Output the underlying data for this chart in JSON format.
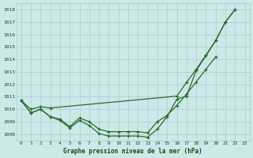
{
  "xlabel": "Graphe pression niveau de la mer (hPa)",
  "bg_color": "#cce8e8",
  "line_color": "#2d6a2d",
  "grid_color": "#aacece",
  "text_color": "#1a4a1a",
  "ylim_min": 1007.5,
  "ylim_max": 1018.5,
  "xlim_min": -0.5,
  "xlim_max": 23.5,
  "yticks": [
    1008,
    1009,
    1010,
    1011,
    1012,
    1013,
    1014,
    1015,
    1016,
    1017,
    1018
  ],
  "xticks": [
    0,
    1,
    2,
    3,
    4,
    5,
    6,
    7,
    8,
    9,
    10,
    11,
    12,
    13,
    14,
    15,
    16,
    17,
    18,
    19,
    20,
    21,
    22,
    23
  ],
  "line1_h": [
    0,
    1,
    2,
    3,
    4,
    5,
    6,
    7,
    8,
    9,
    10,
    11,
    12,
    13,
    14,
    15,
    16,
    17,
    18,
    19,
    20,
    21,
    22
  ],
  "line1_v": [
    1010.7,
    1009.7,
    1010.0,
    1009.4,
    1009.1,
    1008.5,
    1009.1,
    1008.7,
    1008.05,
    1007.85,
    1007.85,
    1007.85,
    1007.85,
    1007.75,
    1008.4,
    1009.4,
    1010.8,
    1011.05,
    1013.1,
    1014.3,
    1015.5,
    1017.0,
    1018.0
  ],
  "line2_h": [
    0,
    1,
    2,
    3,
    4,
    5,
    6,
    7,
    8,
    9,
    10,
    11,
    12,
    13,
    14,
    15,
    16,
    17,
    18,
    19,
    20
  ],
  "line2_v": [
    1010.7,
    1009.7,
    1010.0,
    1009.4,
    1009.2,
    1008.6,
    1009.3,
    1009.0,
    1008.4,
    1008.2,
    1008.2,
    1008.2,
    1008.2,
    1008.1,
    1009.0,
    1009.5,
    1010.3,
    1011.2,
    1012.2,
    1013.2,
    1014.2
  ],
  "line3_h": [
    0,
    1,
    2,
    3,
    16,
    17,
    18,
    19,
    20,
    21,
    22
  ],
  "line3_v": [
    1010.7,
    1010.0,
    1010.2,
    1010.1,
    1011.05,
    1012.15,
    1013.2,
    1014.35,
    1015.5,
    1017.0,
    1018.0
  ],
  "xlabel_fontsize": 5.5,
  "tick_fontsize": 4.5,
  "linewidth": 0.9,
  "markersize": 3.5
}
